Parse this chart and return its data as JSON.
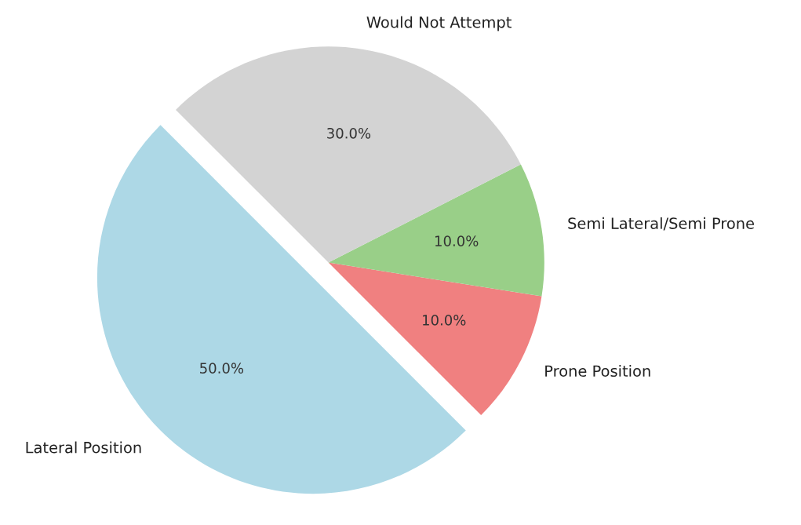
{
  "chart_data": {
    "type": "pie",
    "categories": [
      "Lateral Position",
      "Prone Position",
      "Semi Lateral/Semi Prone",
      "Would Not Attempt"
    ],
    "values": [
      50,
      10,
      10,
      30
    ],
    "colors": [
      "#add8e6",
      "#f08080",
      "#99cf88",
      "#d3d3d3"
    ],
    "value_labels": [
      "50.0%",
      "10.0%",
      "10.0%",
      "30.0%"
    ]
  }
}
